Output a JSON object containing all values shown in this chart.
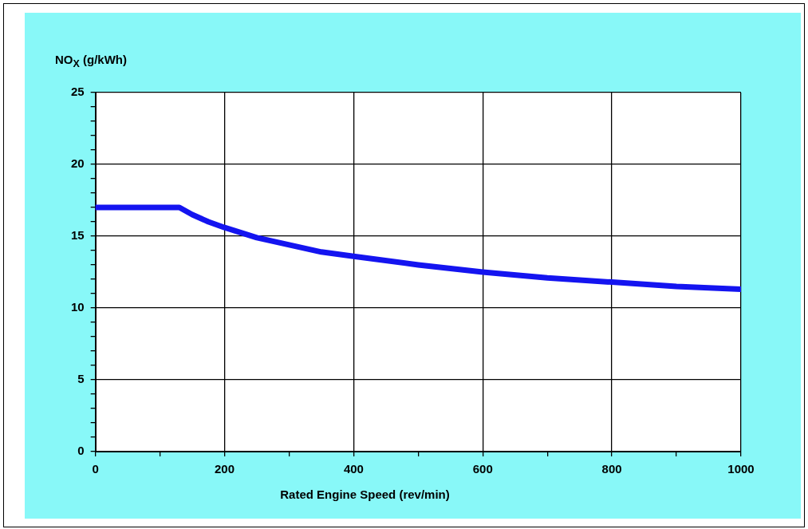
{
  "chart_data": {
    "type": "line",
    "ylabel": "NO$_{X}$ (g/kWh)",
    "xlabel": "Rated Engine Speed (rev/min)",
    "series": [
      {
        "color": "#1414f0",
        "x": [
          0,
          130,
          150,
          175,
          200,
          250,
          300,
          350,
          400,
          500,
          600,
          700,
          800,
          900,
          1000
        ],
        "values": [
          17.0,
          17.0,
          16.5,
          16.0,
          15.6,
          14.9,
          14.4,
          13.9,
          13.6,
          13.0,
          12.5,
          12.1,
          11.8,
          11.5,
          11.3
        ]
      }
    ],
    "xlim": [
      0,
      1000
    ],
    "xticks": [
      0,
      {
        "value": 100,
        "label": null
      },
      200,
      {
        "value": 300,
        "label": null
      },
      400,
      {
        "value": 500,
        "label": null
      },
      600,
      {
        "value": 700,
        "label": null
      },
      800,
      {
        "value": 900,
        "label": null
      },
      1000
    ],
    "ylim": [
      0,
      25
    ],
    "yticks": [
      0,
      {
        "value": 1,
        "label": null
      },
      {
        "value": 2,
        "label": null
      },
      {
        "value": 3,
        "label": null
      },
      {
        "value": 4,
        "label": null
      },
      5,
      {
        "value": 6,
        "label": null
      },
      {
        "value": 7,
        "label": null
      },
      {
        "value": 8,
        "label": null
      },
      {
        "value": 9,
        "label": null
      },
      10,
      {
        "value": 11,
        "label": null
      },
      {
        "value": 12,
        "label": null
      },
      {
        "value": 13,
        "label": null
      },
      {
        "value": 14,
        "label": null
      },
      15,
      {
        "value": 16,
        "label": null
      },
      {
        "value": 17,
        "label": null
      },
      {
        "value": 18,
        "label": null
      },
      {
        "value": 19,
        "label": null
      },
      20,
      {
        "value": 21,
        "label": null
      },
      {
        "value": 22,
        "label": null
      },
      {
        "value": 23,
        "label": null
      },
      {
        "value": 24,
        "label": null
      },
      25
    ],
    "grid": true,
    "legend": false,
    "marker": "none",
    "line_style": "solid"
  }
}
